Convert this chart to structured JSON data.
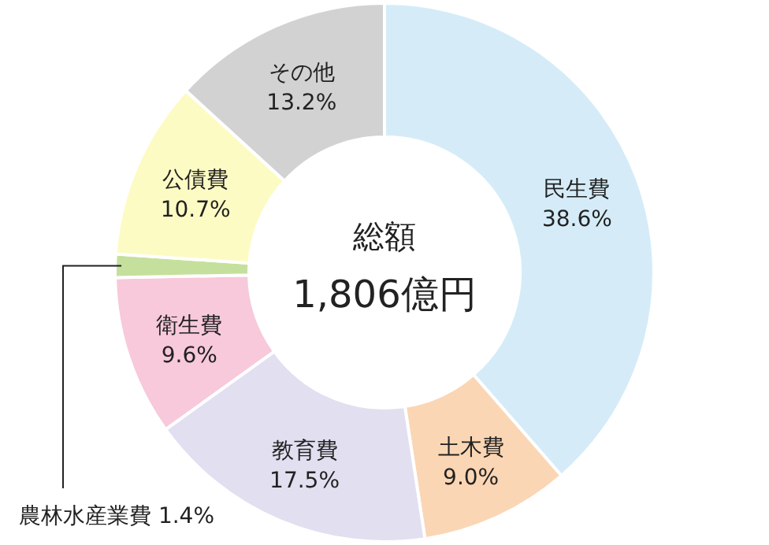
{
  "chart_data": {
    "type": "donut",
    "categories": [
      "民生費",
      "土木費",
      "教育費",
      "衛生費",
      "農林水産業費",
      "公債費",
      "その他"
    ],
    "values": [
      38.6,
      9.0,
      17.5,
      9.6,
      1.4,
      10.7,
      13.2
    ],
    "value_labels": [
      "38.6%",
      "9.0%",
      "17.5%",
      "9.6%",
      "1.4%",
      "10.7%",
      "13.2%"
    ],
    "colors": [
      "#d5ecf8",
      "#fbd6b4",
      "#e1dff0",
      "#f7c9da",
      "#c5e09c",
      "#fdfbc4",
      "#d2d2d2"
    ],
    "annotations": [
      "総額",
      "1,806億円"
    ]
  }
}
